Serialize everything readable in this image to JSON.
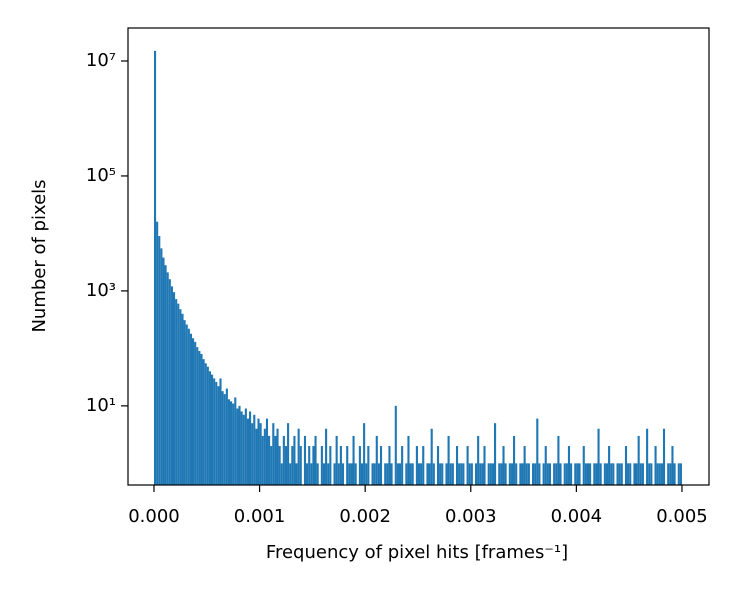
{
  "chart_data": {
    "type": "histogram",
    "xlabel": "Frequency of pixel hits [frames⁻¹]",
    "ylabel": "Number of pixels",
    "color": "#1f77b4",
    "log_y": true,
    "xlim": [
      -0.000246,
      0.005256
    ],
    "ylim": [
      0.42,
      37500000
    ],
    "xticks": [
      {
        "value": 0,
        "label": "0.000"
      },
      {
        "value": 0.001,
        "label": "0.001"
      },
      {
        "value": 0.002,
        "label": "0.002"
      },
      {
        "value": 0.003,
        "label": "0.003"
      },
      {
        "value": 0.004,
        "label": "0.004"
      },
      {
        "value": 0.005,
        "label": "0.005"
      }
    ],
    "yticks": [
      {
        "value": 10,
        "label": "10¹"
      },
      {
        "value": 1000,
        "label": "10³"
      },
      {
        "value": 100000,
        "label": "10⁵"
      },
      {
        "value": 10000000,
        "label": "10⁷"
      }
    ],
    "bins": [
      0.0,
      2e-05,
      4e-05,
      6e-05,
      8e-05,
      0.0001,
      0.00012,
      0.00014,
      0.00016,
      0.00018,
      0.0002,
      0.00022,
      0.00024,
      0.00026,
      0.00028,
      0.0003,
      0.00032,
      0.00034,
      0.00036,
      0.00038,
      0.0004,
      0.00042,
      0.00044,
      0.00046,
      0.00048,
      0.0005,
      0.00052,
      0.00054,
      0.00056,
      0.00058,
      0.0006,
      0.00062,
      0.00064,
      0.00066,
      0.00068,
      0.0007,
      0.00072,
      0.00074,
      0.00076,
      0.00078,
      0.0008,
      0.00082,
      0.00084,
      0.00086,
      0.00088,
      0.0009,
      0.00092,
      0.00094,
      0.00096,
      0.00098,
      0.001,
      0.00102,
      0.00104,
      0.00106,
      0.00108,
      0.0011,
      0.00112,
      0.00114,
      0.00116,
      0.00118,
      0.0012,
      0.00122,
      0.00124,
      0.00126,
      0.00128,
      0.0013,
      0.00132,
      0.00134,
      0.00136,
      0.00138,
      0.0014,
      0.00142,
      0.00144,
      0.00146,
      0.00148,
      0.0015,
      0.00152,
      0.00154,
      0.00156,
      0.00158,
      0.0016,
      0.00162,
      0.00164,
      0.00166,
      0.00168,
      0.0017,
      0.00172,
      0.00174,
      0.00176,
      0.00178,
      0.0018,
      0.00182,
      0.00184,
      0.00186,
      0.00188,
      0.0019,
      0.00192,
      0.00194,
      0.00196,
      0.00198,
      0.002,
      0.00202,
      0.00204,
      0.00206,
      0.00208,
      0.0021,
      0.00212,
      0.00214,
      0.00216,
      0.00218,
      0.0022,
      0.00222,
      0.00224,
      0.00226,
      0.00228,
      0.0023,
      0.00232,
      0.00234,
      0.00236,
      0.00238,
      0.0024,
      0.00242,
      0.00244,
      0.00246,
      0.00248,
      0.0025,
      0.00252,
      0.00254,
      0.00256,
      0.00258,
      0.0026,
      0.00262,
      0.00264,
      0.00266,
      0.00268,
      0.0027,
      0.00272,
      0.00274,
      0.00276,
      0.00278,
      0.0028,
      0.00282,
      0.00284,
      0.00286,
      0.00288,
      0.0029,
      0.00292,
      0.00294,
      0.00296,
      0.00298,
      0.003,
      0.00302,
      0.00304,
      0.00306,
      0.00308,
      0.0031,
      0.00312,
      0.00314,
      0.00316,
      0.00318,
      0.0032,
      0.00322,
      0.00324,
      0.00326,
      0.00328,
      0.0033,
      0.00332,
      0.00334,
      0.00336,
      0.00338,
      0.0034,
      0.00342,
      0.00344,
      0.00346,
      0.00348,
      0.0035,
      0.00352,
      0.00354,
      0.00356,
      0.00358,
      0.0036,
      0.00362,
      0.00364,
      0.00366,
      0.00368,
      0.0037,
      0.00372,
      0.00374,
      0.00376,
      0.00378,
      0.0038,
      0.00382,
      0.00384,
      0.00386,
      0.00388,
      0.0039,
      0.00392,
      0.00394,
      0.00396,
      0.00398,
      0.004,
      0.00402,
      0.00404,
      0.00406,
      0.00408,
      0.0041,
      0.00412,
      0.00414,
      0.00416,
      0.00418,
      0.0042,
      0.00422,
      0.00424,
      0.00426,
      0.00428,
      0.0043,
      0.00432,
      0.00434,
      0.00436,
      0.00438,
      0.0044,
      0.00442,
      0.00444,
      0.00446,
      0.00448,
      0.0045,
      0.00452,
      0.00454,
      0.00456,
      0.00458,
      0.0046,
      0.00462,
      0.00464,
      0.00466,
      0.00468,
      0.0047,
      0.00472,
      0.00474,
      0.00476,
      0.00478,
      0.0048,
      0.00482,
      0.00484,
      0.00486,
      0.00488,
      0.0049,
      0.00492,
      0.00494,
      0.00496,
      0.00498,
      0.005
    ],
    "values": [
      15000000,
      16000,
      9000,
      5500,
      3800,
      2800,
      2100,
      1600,
      1200,
      950,
      720,
      600,
      480,
      400,
      310,
      260,
      220,
      180,
      150,
      130,
      105,
      90,
      80,
      65,
      55,
      48,
      40,
      35,
      30,
      26,
      22,
      30,
      18,
      16,
      20,
      13,
      12,
      11,
      14,
      9,
      10,
      8,
      7,
      9,
      6,
      8,
      5,
      7,
      4,
      6,
      5,
      3,
      4,
      6,
      3,
      2,
      5,
      3,
      4,
      2,
      1,
      3,
      2,
      5,
      1,
      2,
      3,
      1,
      4,
      2,
      0,
      3,
      1,
      2,
      1,
      2,
      3,
      1,
      0,
      2,
      1,
      4,
      1,
      2,
      0,
      1,
      3,
      1,
      2,
      1,
      0,
      2,
      1,
      1,
      3,
      1,
      0,
      2,
      1,
      5,
      1,
      2,
      0,
      1,
      1,
      3,
      1,
      2,
      0,
      1,
      1,
      2,
      1,
      0,
      10,
      1,
      1,
      2,
      0,
      1,
      3,
      1,
      1,
      0,
      2,
      1,
      1,
      2,
      0,
      1,
      1,
      4,
      1,
      0,
      2,
      1,
      1,
      0,
      1,
      3,
      1,
      1,
      0,
      2,
      1,
      1,
      1,
      0,
      2,
      1,
      1,
      0,
      1,
      3,
      1,
      1,
      2,
      0,
      1,
      1,
      1,
      5,
      0,
      1,
      1,
      2,
      1,
      0,
      1,
      1,
      3,
      1,
      0,
      1,
      1,
      2,
      1,
      1,
      0,
      1,
      1,
      6,
      1,
      0,
      1,
      2,
      1,
      1,
      0,
      1,
      1,
      3,
      1,
      0,
      1,
      1,
      2,
      1,
      0,
      1,
      1,
      1,
      0,
      2,
      1,
      1,
      1,
      0,
      1,
      1,
      4,
      1,
      0,
      1,
      1,
      2,
      1,
      1,
      0,
      1,
      1,
      1,
      0,
      2,
      1,
      1,
      0,
      1,
      1,
      3,
      1,
      1,
      0,
      4,
      1,
      1,
      0,
      2,
      1,
      1,
      1,
      4,
      0,
      1,
      1,
      2,
      1,
      0,
      1,
      1
    ]
  }
}
